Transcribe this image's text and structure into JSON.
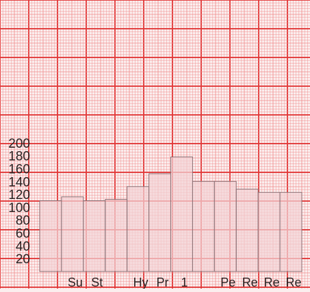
{
  "chart_data": {
    "type": "bar",
    "title": "",
    "xlabel": "",
    "ylabel": "",
    "categories": [
      "",
      "Su",
      "St",
      "",
      "Hy",
      "Pr",
      "1",
      "",
      "Pe",
      "Re",
      "Re",
      "Re"
    ],
    "values": [
      110,
      116,
      110,
      112,
      132,
      152,
      178,
      140,
      140,
      128,
      123,
      123
    ],
    "ylim": [
      0,
      210
    ],
    "yticks": [
      20,
      40,
      60,
      80,
      100,
      120,
      140,
      160,
      180,
      200
    ],
    "grid": true,
    "legend": "none",
    "colors": {
      "paper": "#fbeeee",
      "grid_fine": "#f08a8a",
      "grid_major": "#e23a3a",
      "bar_fill": "#f3d3d6",
      "bar_stroke": "#8a6e73",
      "text": "#2b2222"
    }
  }
}
